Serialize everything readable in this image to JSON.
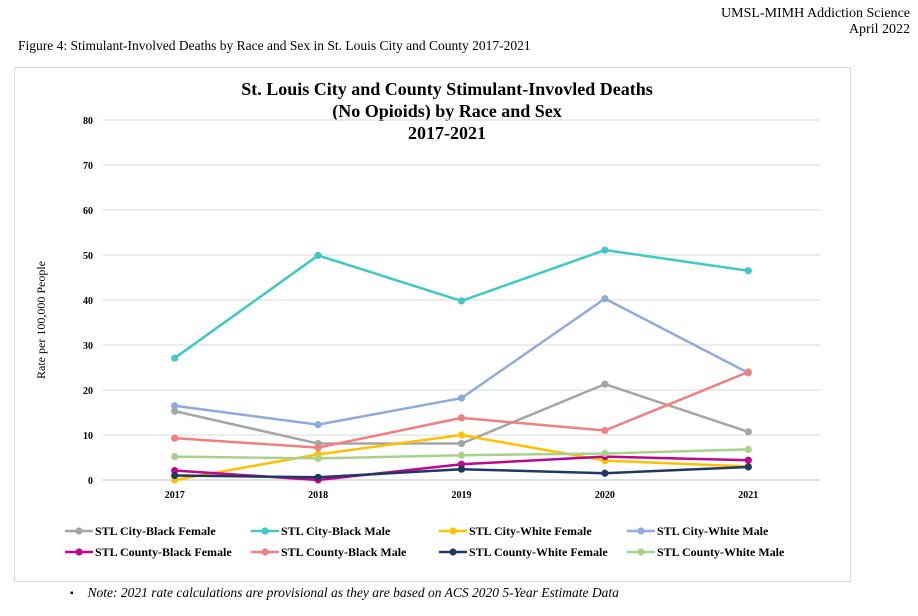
{
  "header": {
    "org_line1": "UMSL-MIMH Addiction Science",
    "org_line2": "April 2022",
    "figure_caption": "Figure 4: Stimulant-Involved Deaths by Race and Sex in St. Louis City and County 2017-2021"
  },
  "note": {
    "bullet": "▪",
    "text": "Note: 2021 rate calculations are provisional as they are based on ACS 2020 5-Year Estimate Data"
  },
  "chart_data": {
    "type": "line",
    "title_lines": [
      "St. Louis City and County Stimulant-Invovled Deaths",
      "(No Opioids) by Race and Sex",
      "2017-2021"
    ],
    "xlabel": "",
    "ylabel": "Rate per 100,000 People",
    "categories": [
      "2017",
      "2018",
      "2019",
      "2020",
      "2021"
    ],
    "ylim": [
      0,
      80
    ],
    "yticks": [
      0,
      10,
      20,
      30,
      40,
      50,
      60,
      70,
      80
    ],
    "grid": true,
    "legend_position": "bottom",
    "series": [
      {
        "name": "STL City-Black Female",
        "color": "#a5a5a5",
        "values": [
          15.3,
          8.1,
          8.1,
          21.3,
          10.7
        ]
      },
      {
        "name": "STL City-Black Male",
        "color": "#3ec8c8",
        "values": [
          27.1,
          49.9,
          39.8,
          51.1,
          46.5
        ]
      },
      {
        "name": "STL City-White Female",
        "color": "#ffc000",
        "values": [
          0.0,
          5.7,
          10.0,
          4.3,
          3.0
        ]
      },
      {
        "name": "STL City-White Male",
        "color": "#8faadc",
        "values": [
          16.5,
          12.3,
          18.2,
          40.3,
          23.8
        ]
      },
      {
        "name": "STL County-Black Female",
        "color": "#c0068f",
        "values": [
          2.1,
          0.0,
          3.5,
          5.2,
          4.4
        ]
      },
      {
        "name": "STL County-Black Male",
        "color": "#f08080",
        "values": [
          9.3,
          7.2,
          13.8,
          11.0,
          24.0
        ]
      },
      {
        "name": "STL County-White Female",
        "color": "#203864",
        "values": [
          1.0,
          0.6,
          2.4,
          1.5,
          2.9
        ]
      },
      {
        "name": "STL County-White Male",
        "color": "#a9d18e",
        "values": [
          5.2,
          4.8,
          5.5,
          5.9,
          6.8
        ]
      }
    ]
  }
}
